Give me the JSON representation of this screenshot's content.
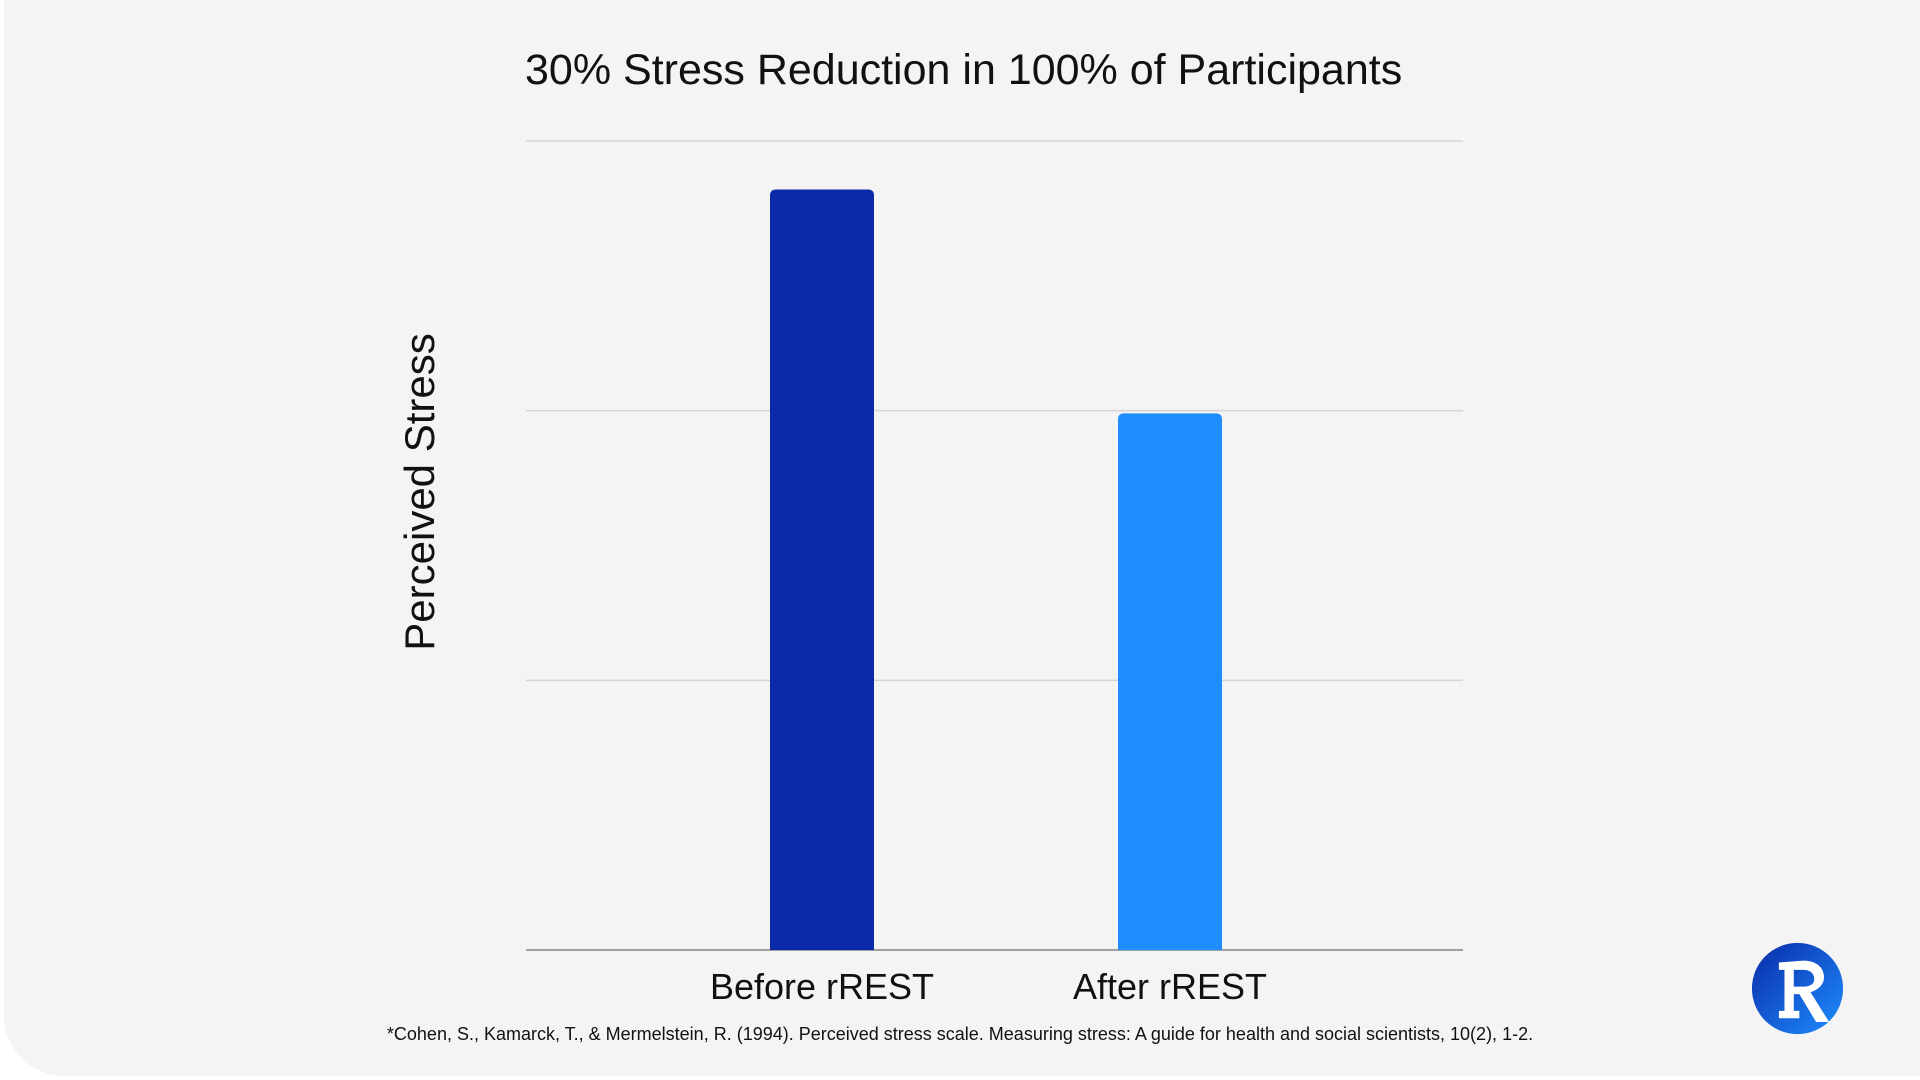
{
  "colors": {
    "before_bar": "#0a2aa8",
    "after_bar": "#1e8eff",
    "gridline": "#d6d6d6",
    "axis": "#a0a0a0",
    "background": "#f4f4f4",
    "logo_dark": "#0a2aa8",
    "logo_light": "#1e8eff"
  },
  "logo": {
    "icon": "rrest-r-logo-icon"
  },
  "chart_data": {
    "type": "bar",
    "title": "30% Stress Reduction in 100% of Participants",
    "ylabel": "Perceived Stress",
    "xlabel": "",
    "categories": [
      "Before rREST",
      "After rREST"
    ],
    "values": [
      28.2,
      19.9
    ],
    "ylim": [
      0,
      30
    ],
    "yticks": [
      0,
      10,
      20,
      30
    ],
    "ytick_labels_shown": false,
    "grid": true,
    "legend": "none",
    "footnote": "*Cohen, S., Kamarck, T., & Mermelstein, R. (1994). Perceived stress scale. Measuring stress: A guide for health and social scientists, 10(2), 1-2."
  }
}
